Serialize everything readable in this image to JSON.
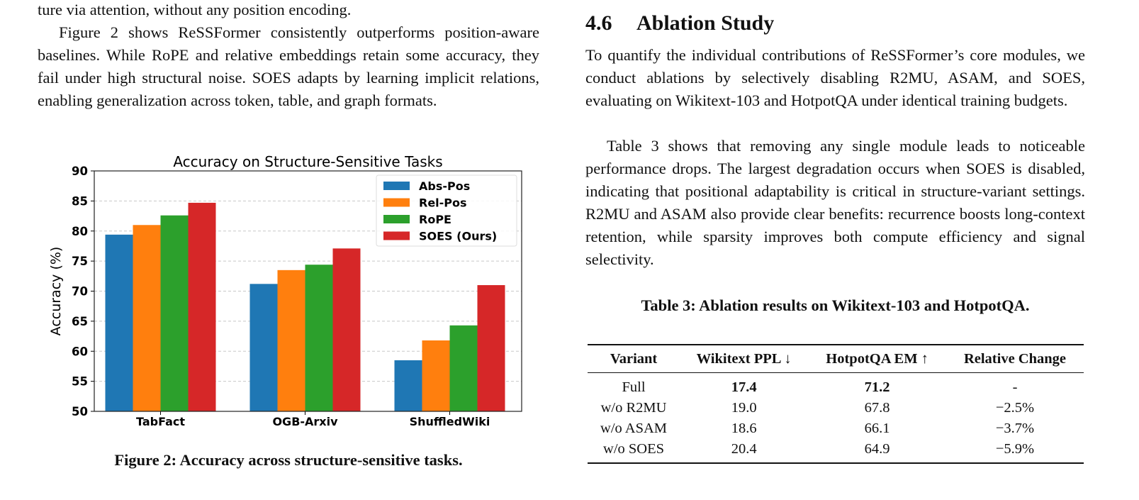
{
  "left_column": {
    "continued_line": "ture via attention, without any position encoding.",
    "paragraph": "Figure 2 shows ReSSFormer consistently outperforms position-aware baselines. While RoPE and relative embeddings retain some accuracy, they fail under high structural noise. SOES adapts by learning implicit relations, enabling generalization across token, table, and graph formats.",
    "figure_caption": "Figure 2: Accuracy across structure-sensitive tasks."
  },
  "right_column": {
    "section_number": "4.6",
    "section_title": "Ablation Study",
    "paragraph1": "To quantify the individual contributions of ReSSFormer’s core modules, we conduct ablations by selectively disabling R2MU, ASAM, and SOES, evaluating on Wikitext-103 and HotpotQA under identical training budgets.",
    "paragraph2": "Table 3 shows that removing any single module leads to noticeable performance drops. The largest degradation occurs when SOES is disabled, indicating that positional adaptability is critical in structure-variant settings. R2MU and ASAM also provide clear benefits: recurrence boosts long-context retention, while sparsity improves both compute efficiency and signal selectivity.",
    "table_caption": "Table 3: Ablation results on Wikitext-103 and HotpotQA.",
    "table": {
      "headers": [
        "Variant",
        "Wikitext PPL ↓",
        "HotpotQA EM ↑",
        "Relative Change"
      ],
      "rows": [
        {
          "variant": "Full",
          "ppl": "17.4",
          "em": "71.2",
          "change": "-"
        },
        {
          "variant": "w/o R2MU",
          "ppl": "19.0",
          "em": "67.8",
          "change": "−2.5%"
        },
        {
          "variant": "w/o ASAM",
          "ppl": "18.6",
          "em": "66.1",
          "change": "−3.7%"
        },
        {
          "variant": "w/o SOES",
          "ppl": "20.4",
          "em": "64.9",
          "change": "−5.9%"
        }
      ]
    }
  },
  "chart_data": {
    "type": "bar",
    "title": "Accuracy on Structure-Sensitive Tasks",
    "xlabel": "",
    "ylabel": "Accuracy (%)",
    "ylim": [
      50,
      90
    ],
    "yticks": [
      50,
      55,
      60,
      65,
      70,
      75,
      80,
      85,
      90
    ],
    "grid": true,
    "legend_position": "top-right",
    "categories": [
      "TabFact",
      "OGB-Arxiv",
      "ShuffledWiki"
    ],
    "series": [
      {
        "name": "Abs-Pos",
        "color": "#1f77b4",
        "values": [
          79.4,
          71.2,
          58.5
        ]
      },
      {
        "name": "Rel-Pos",
        "color": "#ff7f0e",
        "values": [
          81.0,
          73.5,
          61.8
        ]
      },
      {
        "name": "RoPE",
        "color": "#2ca02c",
        "values": [
          82.6,
          74.4,
          64.3
        ]
      },
      {
        "name": "SOES (Ours)",
        "color": "#d62728",
        "values": [
          84.7,
          77.1,
          71.0
        ]
      }
    ]
  }
}
